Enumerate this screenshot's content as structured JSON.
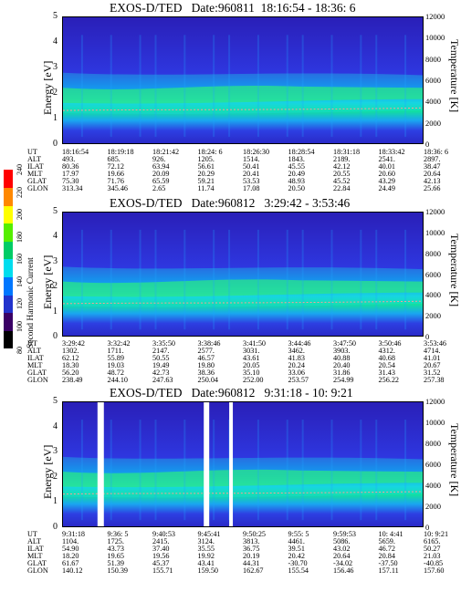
{
  "colorbar": {
    "title": "Second Harmonic Current",
    "ticks": [
      "80",
      "100",
      "120",
      "140",
      "160",
      "180",
      "200",
      "220",
      "240"
    ],
    "colors": [
      "#000000",
      "#3a0066",
      "#2233cc",
      "#0077ff",
      "#00ddee",
      "#00cc66",
      "#55ee00",
      "#ffff00",
      "#ff8800",
      "#ff0000"
    ]
  },
  "chart_data": [
    {
      "type": "heatmap",
      "title": "EXOS-D/TED   Date:960811  18:16:54 - 18:36: 6",
      "ylabel": "Energy [eV]",
      "y2label": "Temperature [K]",
      "yticks": [
        "0",
        "1",
        "2",
        "3",
        "4",
        "5"
      ],
      "y2ticks": [
        "0",
        "2000",
        "4000",
        "6000",
        "8000",
        "10000",
        "12000"
      ],
      "ylim": [
        0,
        5
      ],
      "y2lim": [
        0,
        12000
      ],
      "row_labels": [
        "UT",
        "ALT",
        "ILAT",
        "MLT",
        "GLAT",
        "GLON"
      ],
      "columns": [
        [
          "18:16:54",
          "493.",
          "80.36",
          "17.97",
          "75.30",
          "313.34"
        ],
        [
          "18:19:18",
          "685.",
          "72.12",
          "19.66",
          "71.76",
          "345.46"
        ],
        [
          "18:21:42",
          "926.",
          "63.94",
          "20.09",
          "65.59",
          "2.65"
        ],
        [
          "18:24: 6",
          "1205.",
          "56.61",
          "20.29",
          "59.21",
          "11.74"
        ],
        [
          "18:26:30",
          "1514.",
          "50.41",
          "20.41",
          "53.53",
          "17.08"
        ],
        [
          "18:28:54",
          "1843.",
          "45.55",
          "20.49",
          "48.93",
          "20.50"
        ],
        [
          "18:31:18",
          "2189.",
          "42.12",
          "20.55",
          "45.52",
          "22.84"
        ],
        [
          "18:33:42",
          "2541.",
          "40.01",
          "20.60",
          "43.29",
          "24.49"
        ],
        [
          "18:36: 6",
          "2897.",
          "38.47",
          "20.64",
          "42.13",
          "25.66"
        ]
      ]
    },
    {
      "type": "heatmap",
      "title": "EXOS-D/TED   Date:960812   3:29:42 - 3:53:46",
      "ylabel": "Energy [eV]",
      "y2label": "Temperature [K]",
      "yticks": [
        "0",
        "1",
        "2",
        "3",
        "4",
        "5"
      ],
      "y2ticks": [
        "0",
        "2000",
        "4000",
        "6000",
        "8000",
        "10000",
        "12000"
      ],
      "ylim": [
        0,
        5
      ],
      "y2lim": [
        0,
        12000
      ],
      "row_labels": [
        "UT",
        "ALT",
        "ILAT",
        "MLT",
        "GLAT",
        "GLON"
      ],
      "columns": [
        [
          "3:29:42",
          "1302.",
          "62.12",
          "18.30",
          "56.20",
          "238.49"
        ],
        [
          "3:32:42",
          "1711.",
          "55.89",
          "19.03",
          "48.72",
          "244.10"
        ],
        [
          "3:35:50",
          "2147.",
          "50.55",
          "19.49",
          "42.73",
          "247.63"
        ],
        [
          "3:38:46",
          "2577.",
          "46.57",
          "19.80",
          "38.36",
          "250.04"
        ],
        [
          "3:41:50",
          "3031.",
          "43.61",
          "20.05",
          "35.10",
          "252.00"
        ],
        [
          "3:44:46",
          "3462.",
          "41.83",
          "20.24",
          "33.06",
          "253.57"
        ],
        [
          "3:47:50",
          "3903.",
          "40.88",
          "20.40",
          "31.86",
          "254.99"
        ],
        [
          "3:50:46",
          "4312.",
          "40.68",
          "20.54",
          "31.43",
          "256.22"
        ],
        [
          "3:53:46",
          "4714.",
          "41.01",
          "20.67",
          "31.52",
          "257.38"
        ]
      ]
    },
    {
      "type": "heatmap",
      "title": "EXOS-D/TED   Date:960812   9:31:18 - 10: 9:21",
      "ylabel": "Energy [eV]",
      "y2label": "Temperature [K]",
      "yticks": [
        "0",
        "1",
        "2",
        "3",
        "4",
        "5"
      ],
      "y2ticks": [
        "0",
        "2000",
        "4000",
        "6000",
        "8000",
        "10000",
        "12000"
      ],
      "ylim": [
        0,
        5
      ],
      "y2lim": [
        0,
        12000
      ],
      "row_labels": [
        "UT",
        "ALT",
        "ILAT",
        "MLT",
        "GLAT",
        "GLON"
      ],
      "columns": [
        [
          "9:31:18",
          "1104.",
          "54.90",
          "18.20",
          "61.67",
          "140.12"
        ],
        [
          "9:36: 5",
          "1725.",
          "43.73",
          "19.65",
          "51.39",
          "150.39"
        ],
        [
          "9:40:53",
          "2415.",
          "37.40",
          "19.56",
          "45.37",
          "155.71"
        ],
        [
          "9:45:41",
          "3124.",
          "35.55",
          "19.92",
          "43.41",
          "159.50"
        ],
        [
          "9:50:25",
          "3813.",
          "36.75",
          "20.19",
          "44.31",
          "162.67"
        ],
        [
          "9:55: 5",
          "4461.",
          "39.51",
          "20.42",
          "-30.70",
          "155.54"
        ],
        [
          "9:59:53",
          "5086.",
          "43.02",
          "20.64",
          "-34.02",
          "156.46"
        ],
        [
          "10: 4:41",
          "5659.",
          "46.72",
          "20.84",
          "-37.50",
          "157.11"
        ],
        [
          "10: 9:21",
          "6165.",
          "50.27",
          "21.03",
          "-40.85",
          "157.60"
        ]
      ]
    }
  ]
}
